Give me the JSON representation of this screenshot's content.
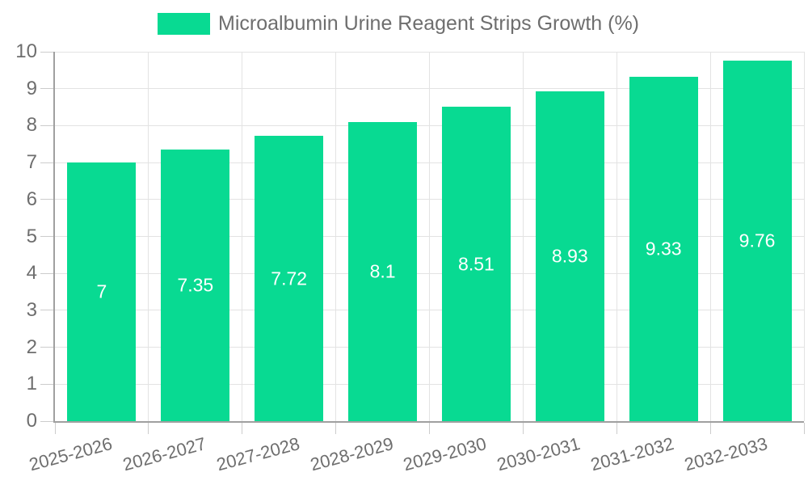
{
  "chart_data": {
    "type": "bar",
    "title": "Microalbumin Urine Reagent Strips Growth (%)",
    "legend": {
      "position": "top",
      "label": "Microalbumin Urine Reagent Strips Growth (%)"
    },
    "categories": [
      "2025-2026",
      "2026-2027",
      "2027-2028",
      "2028-2029",
      "2029-2030",
      "2030-2031",
      "2031-2032",
      "2032-2033"
    ],
    "series": [
      {
        "name": "Microalbumin Urine Reagent Strips Growth (%)",
        "values": [
          7,
          7.35,
          7.72,
          8.1,
          8.51,
          8.93,
          9.33,
          9.76
        ]
      }
    ],
    "value_labels": [
      "7",
      "7.35",
      "7.72",
      "8.1",
      "8.51",
      "8.93",
      "9.33",
      "9.76"
    ],
    "xlabel": "",
    "ylabel": "",
    "ylim": [
      0,
      10
    ],
    "yticks": [
      0,
      1,
      2,
      3,
      4,
      5,
      6,
      7,
      8,
      9,
      10
    ],
    "grid": "both",
    "x_label_rotation_deg": -15,
    "colors": {
      "bar": "#08da92",
      "value_label": "#ffffff",
      "axis_text": "#6e6e6e",
      "gridline": "#e3e3e3",
      "axis_line": "#a0a0a0",
      "tick": "#cccccc",
      "background": "#ffffff"
    }
  }
}
